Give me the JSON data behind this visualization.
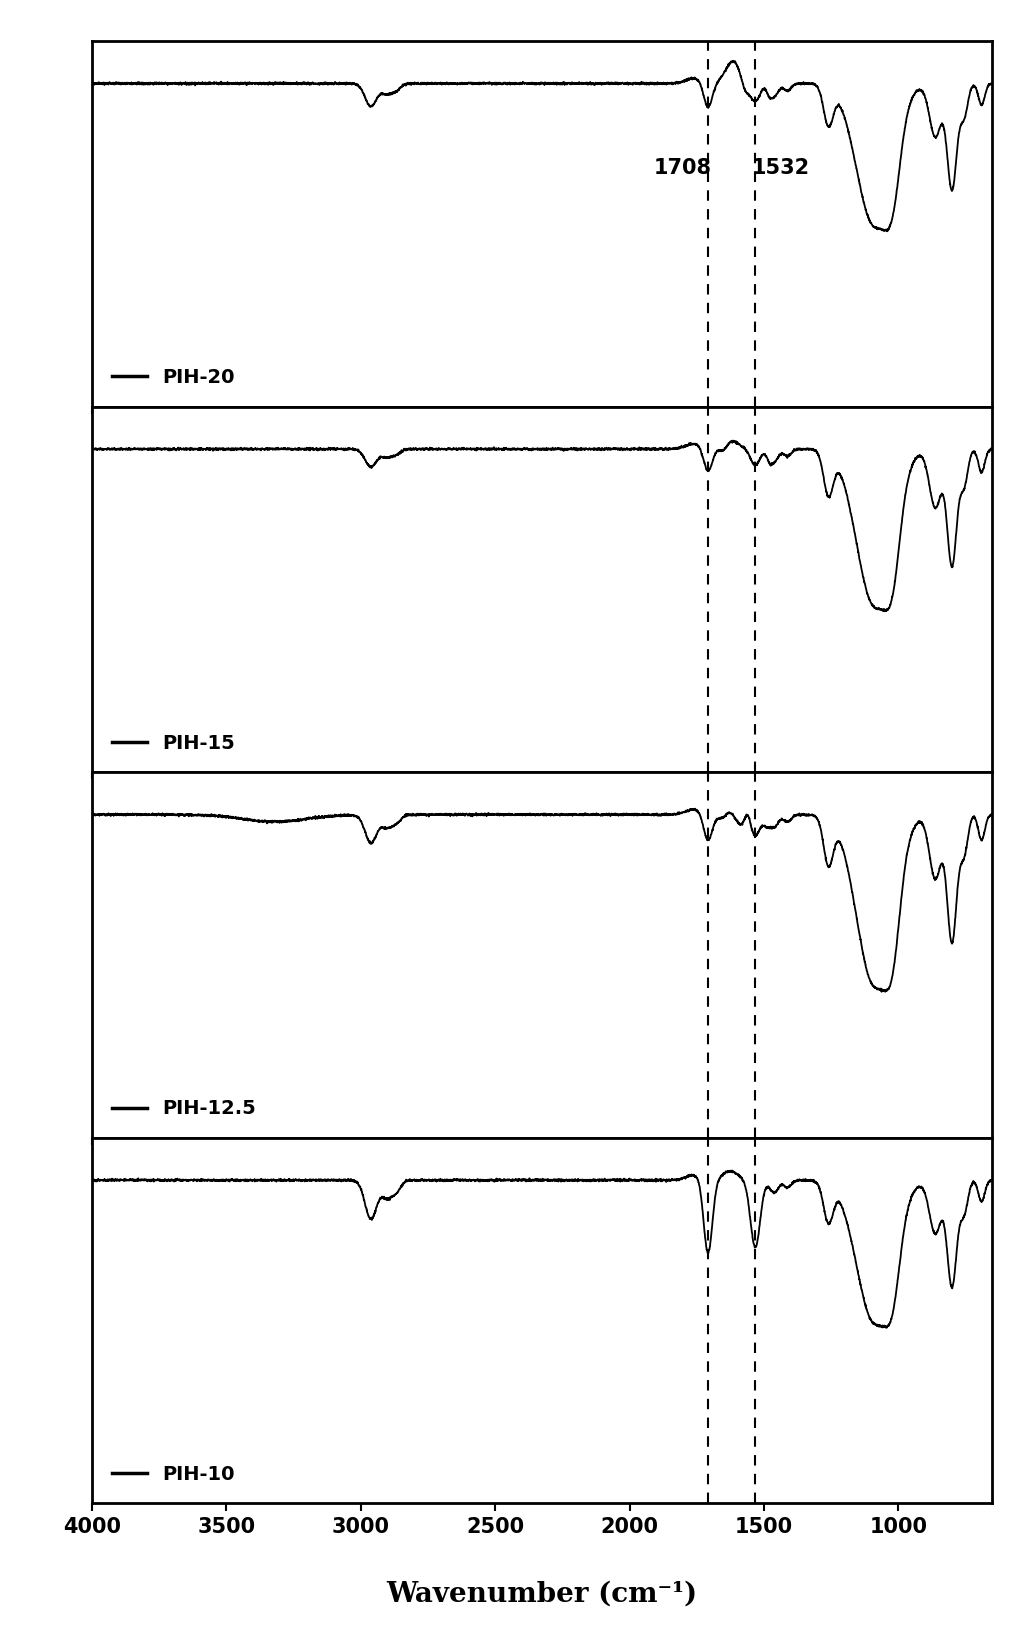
{
  "x_min": 650,
  "x_max": 4000,
  "panels": [
    "PIH-20",
    "PIH-15",
    "PIH-12.5",
    "PIH-10"
  ],
  "dashed_lines": [
    1708,
    1532
  ],
  "ann_1708": "1708",
  "ann_1532": "1532",
  "xlabel": "Wavenumber (cm⁻¹)",
  "xticks": [
    4000,
    3500,
    3000,
    2500,
    2000,
    1500,
    1000
  ],
  "xtick_labels": [
    "4000",
    "3500",
    "3000",
    "2500",
    "2000",
    "1500",
    "1000"
  ],
  "background_color": "#ffffff",
  "line_color": "#000000",
  "dashed_color": "#000000",
  "title_fontsize": 20,
  "label_fontsize": 15,
  "tick_fontsize": 15,
  "legend_fontsize": 14,
  "figsize": [
    10.23,
    16.43
  ]
}
